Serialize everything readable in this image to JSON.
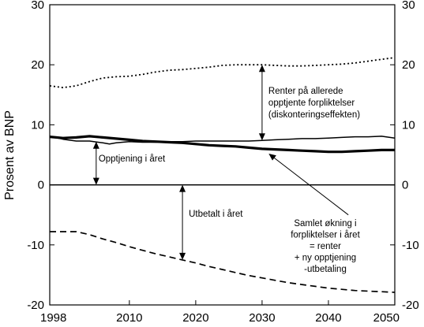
{
  "chart_data": {
    "type": "line",
    "ylabel": "Prosent av BNP",
    "xlim": [
      1998,
      2050
    ],
    "ylim": [
      -20,
      30
    ],
    "x_ticks": [
      1998,
      2010,
      2020,
      2030,
      2040,
      2050
    ],
    "y_ticks": [
      -20,
      -10,
      0,
      10,
      20,
      30
    ],
    "y_tick_labels": [
      "-20",
      "-10",
      "0",
      "10",
      "20",
      "30"
    ],
    "grid": false,
    "legend": "none",
    "series": [
      {
        "style": "dotted",
        "x": [
          1998,
          2000,
          2002,
          2004,
          2006,
          2008,
          2010,
          2012,
          2014,
          2016,
          2018,
          2020,
          2022,
          2024,
          2026,
          2028,
          2030,
          2032,
          2034,
          2036,
          2038,
          2040,
          2042,
          2044,
          2046,
          2048,
          2050
        ],
        "y": [
          16.5,
          16.2,
          16.5,
          17.2,
          17.8,
          18.0,
          18.1,
          18.4,
          18.8,
          19.1,
          19.2,
          19.4,
          19.6,
          19.9,
          20.0,
          20.0,
          20.0,
          19.9,
          19.8,
          19.8,
          19.9,
          20.0,
          20.1,
          20.3,
          20.6,
          20.9,
          21.2
        ]
      },
      {
        "style": "solid-thin",
        "x": [
          1998,
          2000,
          2002,
          2004,
          2006,
          2007,
          2008,
          2010,
          2012,
          2014,
          2016,
          2018,
          2020,
          2022,
          2024,
          2026,
          2028,
          2030,
          2032,
          2034,
          2036,
          2038,
          2040,
          2042,
          2044,
          2046,
          2048,
          2050
        ],
        "y": [
          8.1,
          7.6,
          7.3,
          7.3,
          7.0,
          6.8,
          7.0,
          7.2,
          7.1,
          7.1,
          7.2,
          7.2,
          7.3,
          7.3,
          7.3,
          7.3,
          7.3,
          7.4,
          7.5,
          7.6,
          7.7,
          7.7,
          7.8,
          7.9,
          8.0,
          8.0,
          8.1,
          7.8
        ]
      },
      {
        "style": "solid-thick",
        "x": [
          1998,
          2000,
          2002,
          2004,
          2006,
          2008,
          2010,
          2012,
          2014,
          2016,
          2018,
          2020,
          2022,
          2024,
          2026,
          2028,
          2030,
          2032,
          2034,
          2036,
          2038,
          2040,
          2042,
          2044,
          2046,
          2048,
          2050
        ],
        "y": [
          8.0,
          7.8,
          7.9,
          8.1,
          7.9,
          7.7,
          7.5,
          7.3,
          7.2,
          7.1,
          7.0,
          6.8,
          6.6,
          6.5,
          6.4,
          6.2,
          6.0,
          5.9,
          5.8,
          5.7,
          5.6,
          5.5,
          5.5,
          5.6,
          5.7,
          5.8,
          5.8
        ]
      },
      {
        "style": "solid-zero",
        "x": [
          1998,
          2050
        ],
        "y": [
          0,
          0
        ]
      },
      {
        "style": "dashed",
        "x": [
          1998,
          2000,
          2002,
          2004,
          2006,
          2008,
          2010,
          2012,
          2014,
          2016,
          2018,
          2020,
          2022,
          2024,
          2026,
          2028,
          2030,
          2032,
          2034,
          2036,
          2038,
          2040,
          2042,
          2044,
          2046,
          2048,
          2050
        ],
        "y": [
          -7.8,
          -7.8,
          -7.8,
          -8.3,
          -9.0,
          -9.6,
          -10.3,
          -10.9,
          -11.5,
          -12.0,
          -12.5,
          -13.0,
          -13.6,
          -14.1,
          -14.6,
          -15.1,
          -15.5,
          -15.9,
          -16.3,
          -16.6,
          -16.9,
          -17.2,
          -17.4,
          -17.6,
          -17.7,
          -17.8,
          -17.9
        ]
      }
    ],
    "annotations": [
      {
        "name": "annotation-renter",
        "lines": [
          "Renter på allerede",
          "opptjente forpliktelser",
          "(diskonteringseffekten)"
        ],
        "arrow": {
          "x": 2030,
          "y_from": 20,
          "y_to": 7.4
        }
      },
      {
        "name": "annotation-opptjening",
        "lines": [
          "Opptjening i året"
        ],
        "arrow": {
          "x": 2005,
          "y_from": 7.2,
          "y_to": 0
        }
      },
      {
        "name": "annotation-utbetalt",
        "lines": [
          "Utbetalt i året"
        ],
        "arrow": {
          "x": 2018,
          "y_from": 0,
          "y_to": -12.5
        }
      },
      {
        "name": "annotation-samlet",
        "lines": [
          "Samlet økning i",
          "forpliktelser i året",
          "= renter",
          "+ ny opptjening",
          "-utbetaling"
        ],
        "arrow": {
          "x_from": 2043,
          "y_from": -5,
          "x_to": 2031,
          "y_to": 5.2
        }
      }
    ]
  }
}
